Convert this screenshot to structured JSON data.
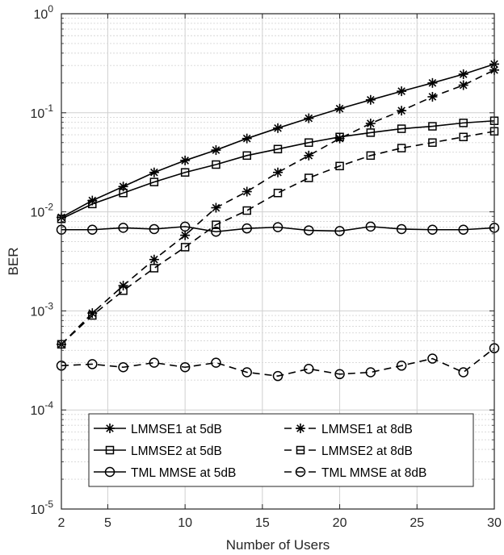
{
  "chart_data": {
    "type": "line",
    "title": "",
    "xlabel": "Number of Users",
    "ylabel": "BER",
    "xlim": [
      2,
      30
    ],
    "ylim": [
      1e-05,
      1
    ],
    "yscale": "log",
    "grid": true,
    "minor_grid": true,
    "legend_position": "bottom",
    "legend_columns": 2,
    "x_ticks": [
      2,
      5,
      10,
      15,
      20,
      25,
      30
    ],
    "y_ticks": [
      {
        "value": 1e-05,
        "base": "10",
        "exp": "-5"
      },
      {
        "value": 0.0001,
        "base": "10",
        "exp": "-4"
      },
      {
        "value": 0.001,
        "base": "10",
        "exp": "-3"
      },
      {
        "value": 0.01,
        "base": "10",
        "exp": "-2"
      },
      {
        "value": 0.1,
        "base": "10",
        "exp": "-1"
      },
      {
        "value": 1,
        "base": "10",
        "exp": "0"
      }
    ],
    "x": [
      2,
      4,
      6,
      8,
      10,
      12,
      14,
      16,
      18,
      20,
      22,
      24,
      26,
      28,
      30
    ],
    "series": [
      {
        "name": "LMMSE1 at 5dB",
        "marker": "asterisk",
        "dash": "solid",
        "values": [
          0.0088,
          0.013,
          0.018,
          0.025,
          0.033,
          0.042,
          0.055,
          0.07,
          0.088,
          0.11,
          0.135,
          0.165,
          0.2,
          0.245,
          0.31
        ]
      },
      {
        "name": "LMMSE2 at 5dB",
        "marker": "square",
        "dash": "solid",
        "values": [
          0.0085,
          0.012,
          0.0155,
          0.02,
          0.025,
          0.03,
          0.037,
          0.043,
          0.05,
          0.057,
          0.063,
          0.069,
          0.073,
          0.079,
          0.083
        ]
      },
      {
        "name": "TML MMSE at 5dB",
        "marker": "circle",
        "dash": "solid",
        "values": [
          0.0066,
          0.0066,
          0.0069,
          0.0067,
          0.0071,
          0.0063,
          0.0068,
          0.007,
          0.0065,
          0.0064,
          0.0071,
          0.0067,
          0.0066,
          0.0066,
          0.0069
        ]
      },
      {
        "name": "LMMSE1 at 8dB",
        "marker": "asterisk",
        "dash": "dashed",
        "values": [
          0.00046,
          0.00095,
          0.0018,
          0.0033,
          0.0058,
          0.011,
          0.016,
          0.025,
          0.037,
          0.055,
          0.078,
          0.105,
          0.145,
          0.19,
          0.27
        ]
      },
      {
        "name": "LMMSE2 at 8dB",
        "marker": "square",
        "dash": "dashed",
        "values": [
          0.00046,
          0.0009,
          0.0016,
          0.0027,
          0.0044,
          0.0074,
          0.0103,
          0.0155,
          0.022,
          0.029,
          0.037,
          0.044,
          0.05,
          0.057,
          0.065
        ]
      },
      {
        "name": "TML MMSE at 8dB",
        "marker": "circle",
        "dash": "dashed",
        "values": [
          0.00028,
          0.00029,
          0.00027,
          0.0003,
          0.00027,
          0.0003,
          0.00024,
          0.00022,
          0.00026,
          0.00023,
          0.00024,
          0.00028,
          0.00033,
          0.00024,
          0.00042
        ]
      }
    ]
  }
}
